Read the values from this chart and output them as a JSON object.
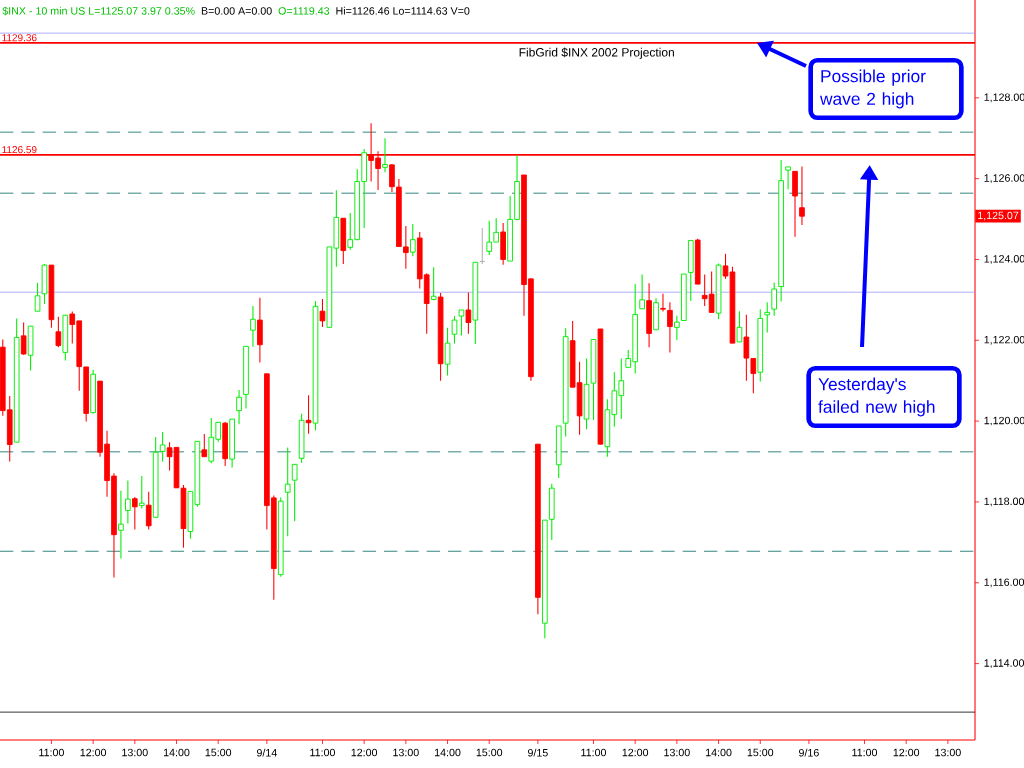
{
  "chart_data": {
    "type": "candlestick",
    "title": "FibGrid $INX 2002 Projection",
    "annotations": [
      "$INX - 10 min  US  L=1125.07  3.97  0.35%",
      "B=0.00  A=0.00",
      "O=1119.43",
      "Hi=1126.46  Lo=1114.63  V=0",
      {
        "text": "Possible prior wave 2 high",
        "y": 1129.36
      },
      "Yesterday's failed new high",
      "1,125.07"
    ],
    "categories": [
      null,
      null,
      null,
      null,
      null,
      null,
      null,
      "11:00",
      null,
      null,
      null,
      null,
      null,
      "12:00",
      null,
      null,
      null,
      null,
      null,
      "13:00",
      null,
      null,
      null,
      null,
      null,
      "14:00",
      null,
      null,
      null,
      null,
      null,
      "15:00",
      null,
      null,
      null,
      null,
      null,
      null,
      "9/14",
      null,
      null,
      null,
      null,
      null,
      null,
      null,
      "11:00",
      null,
      null,
      null,
      null,
      null,
      "12:00",
      null,
      null,
      null,
      null,
      null,
      "13:00",
      null,
      null,
      null,
      null,
      null,
      "14:00",
      null,
      null,
      null,
      null,
      null,
      "15:00",
      null,
      null,
      null,
      null,
      null,
      null,
      "9/15",
      null,
      null,
      null,
      null,
      null,
      null,
      null,
      "11:00",
      null,
      null,
      null,
      null,
      null,
      "12:00",
      null,
      null,
      null,
      null,
      null,
      "13:00",
      null,
      null,
      null,
      null,
      null,
      "14:00",
      null,
      null,
      null,
      null,
      null,
      "15:00",
      null,
      null,
      null,
      null,
      null,
      null,
      "9/16",
      null,
      null,
      null,
      null,
      null,
      null,
      null,
      "11:00",
      null,
      null,
      null,
      null,
      null,
      "12:00",
      null,
      null,
      null,
      null,
      null,
      "13:00",
      null,
      null,
      null
    ],
    "ohlc": [
      [
        1121.83,
        1122.02,
        1120.13,
        1120.26
      ],
      [
        1120.28,
        1120.62,
        1119.0,
        1119.42
      ],
      [
        1119.48,
        1122.54,
        1119.48,
        1122.07
      ],
      [
        1122.11,
        1122.44,
        1121.64,
        1121.66
      ],
      [
        1121.63,
        1122.35,
        1121.25,
        1122.35
      ],
      [
        1122.72,
        1123.42,
        1122.72,
        1123.1
      ],
      [
        1123.15,
        1123.89,
        1122.9,
        1123.86
      ],
      [
        1123.86,
        1123.86,
        1122.31,
        1122.51
      ],
      [
        1122.21,
        1122.58,
        1121.83,
        1121.87
      ],
      [
        1121.7,
        1122.62,
        1121.5,
        1122.62
      ],
      [
        1122.65,
        1122.71,
        1121.92,
        1122.39
      ],
      [
        1122.48,
        1122.48,
        1120.75,
        1121.35
      ],
      [
        1121.34,
        1121.34,
        1119.99,
        1120.19
      ],
      [
        1120.21,
        1121.27,
        1120.19,
        1121.16
      ],
      [
        1120.99,
        1120.99,
        1119.12,
        1119.23
      ],
      [
        1119.43,
        1119.76,
        1118.13,
        1118.53
      ],
      [
        1118.64,
        1118.71,
        1116.13,
        1117.19
      ],
      [
        1117.3,
        1118.28,
        1116.6,
        1117.45
      ],
      [
        1117.79,
        1118.53,
        1117.47,
        1118.07
      ],
      [
        1118.08,
        1118.12,
        1117.32,
        1117.88
      ],
      [
        1117.91,
        1118.64,
        1117.84,
        1117.97
      ],
      [
        1117.92,
        1118.25,
        1117.32,
        1117.41
      ],
      [
        1117.62,
        1119.61,
        1117.62,
        1119.23
      ],
      [
        1119.25,
        1119.73,
        1119.0,
        1119.41
      ],
      [
        1119.34,
        1119.48,
        1118.78,
        1119.12
      ],
      [
        1119.35,
        1119.35,
        1118.35,
        1118.35
      ],
      [
        1118.34,
        1118.42,
        1116.87,
        1117.34
      ],
      [
        1117.27,
        1118.26,
        1117.09,
        1118.26
      ],
      [
        1117.94,
        1119.5,
        1117.88,
        1119.5
      ],
      [
        1119.29,
        1119.68,
        1119.12,
        1119.12
      ],
      [
        1119.01,
        1120.08,
        1118.96,
        1119.6
      ],
      [
        1119.55,
        1119.97,
        1119.49,
        1119.97
      ],
      [
        1119.95,
        1119.98,
        1118.89,
        1119.07
      ],
      [
        1119.06,
        1120.05,
        1118.85,
        1120.05
      ],
      [
        1120.26,
        1120.77,
        1119.92,
        1120.59
      ],
      [
        1120.66,
        1121.85,
        1120.31,
        1121.85
      ],
      [
        1122.25,
        1122.85,
        1121.84,
        1122.52
      ],
      [
        1122.5,
        1123.05,
        1121.45,
        1121.89
      ],
      [
        1121.17,
        1121.17,
        1117.32,
        1117.91
      ],
      [
        1118.1,
        1118.16,
        1115.58,
        1116.35
      ],
      [
        1116.2,
        1118.11,
        1116.15,
        1118.02
      ],
      [
        1118.24,
        1119.35,
        1117.15,
        1118.44
      ],
      [
        1118.54,
        1118.93,
        1117.52,
        1118.93
      ],
      [
        1119.08,
        1120.18,
        1118.97,
        1120.02
      ],
      [
        1120.02,
        1120.64,
        1119.69,
        1119.96
      ],
      [
        1119.95,
        1122.97,
        1119.77,
        1122.84
      ],
      [
        1122.72,
        1123.02,
        1122.33,
        1122.48
      ],
      [
        1122.32,
        1124.31,
        1122.32,
        1124.31
      ],
      [
        1124.28,
        1125.71,
        1123.82,
        1125.04
      ],
      [
        1125.02,
        1125.02,
        1123.89,
        1124.22
      ],
      [
        1124.3,
        1125.15,
        1124.24,
        1124.49
      ],
      [
        1124.49,
        1126.23,
        1124.49,
        1125.93
      ],
      [
        1125.93,
        1126.73,
        1124.78,
        1126.64
      ],
      [
        1126.58,
        1127.37,
        1125.93,
        1126.45
      ],
      [
        1126.51,
        1126.68,
        1125.72,
        1126.25
      ],
      [
        1126.28,
        1127.0,
        1126.16,
        1126.35
      ],
      [
        1126.34,
        1126.36,
        1125.67,
        1125.8
      ],
      [
        1125.79,
        1125.99,
        1124.32,
        1124.32
      ],
      [
        1124.31,
        1124.83,
        1123.77,
        1124.17
      ],
      [
        1124.18,
        1124.88,
        1124.08,
        1124.49
      ],
      [
        1124.53,
        1124.68,
        1123.28,
        1123.52
      ],
      [
        1123.62,
        1123.66,
        1122.16,
        1122.91
      ],
      [
        1123.01,
        1123.81,
        1122.99,
        1123.09
      ],
      [
        1123.07,
        1123.17,
        1121.0,
        1121.42
      ],
      [
        1121.41,
        1122.31,
        1121.13,
        1121.93
      ],
      [
        1122.15,
        1122.6,
        1121.92,
        1122.5
      ],
      [
        1122.6,
        1122.75,
        1122.12,
        1122.75
      ],
      [
        1122.75,
        1123.18,
        1122.16,
        1122.44
      ],
      [
        1122.5,
        1123.93,
        1121.91,
        1123.93
      ],
      [
        1123.95,
        1124.78,
        1123.89,
        1123.95
      ],
      [
        1124.2,
        1124.96,
        1124.11,
        1124.43
      ],
      [
        1124.43,
        1125.02,
        1124.43,
        1124.67
      ],
      [
        1124.68,
        1124.9,
        1123.87,
        1124.0
      ],
      [
        1123.96,
        1125.57,
        1123.96,
        1124.99
      ],
      [
        1124.99,
        1126.58,
        1124.99,
        1125.93
      ],
      [
        1126.09,
        1126.09,
        1122.61,
        1123.38
      ],
      [
        1123.52,
        1123.52,
        1121.0,
        1121.1
      ],
      [
        1119.43,
        1119.43,
        1115.22,
        1115.64
      ],
      [
        1115.0,
        1117.55,
        1114.63,
        1117.55
      ],
      [
        1117.57,
        1118.45,
        1117.06,
        1118.34
      ],
      [
        1118.92,
        1119.88,
        1118.59,
        1119.88
      ],
      [
        1119.95,
        1122.3,
        1119.62,
        1122.09
      ],
      [
        1121.99,
        1122.48,
        1120.84,
        1120.84
      ],
      [
        1120.95,
        1121.47,
        1119.66,
        1120.13
      ],
      [
        1120.05,
        1121.55,
        1119.8,
        1120.91
      ],
      [
        1120.94,
        1122.02,
        1120.03,
        1122.02
      ],
      [
        1122.28,
        1122.28,
        1119.43,
        1119.43
      ],
      [
        1119.37,
        1120.54,
        1119.12,
        1120.28
      ],
      [
        1120.16,
        1121.21,
        1119.86,
        1120.75
      ],
      [
        1120.63,
        1121.55,
        1120.05,
        1121.0
      ],
      [
        1121.33,
        1121.76,
        1121.33,
        1121.55
      ],
      [
        1121.47,
        1123.39,
        1121.18,
        1122.64
      ],
      [
        1122.78,
        1123.63,
        1122.78,
        1123.0
      ],
      [
        1122.98,
        1123.41,
        1121.83,
        1122.17
      ],
      [
        1122.26,
        1123.04,
        1122.26,
        1122.93
      ],
      [
        1122.79,
        1123.15,
        1122.71,
        1122.77
      ],
      [
        1122.74,
        1122.94,
        1121.7,
        1122.34
      ],
      [
        1122.32,
        1122.61,
        1122.01,
        1122.45
      ],
      [
        1122.49,
        1123.64,
        1122.49,
        1123.64
      ],
      [
        1123.68,
        1124.47,
        1122.97,
        1124.47
      ],
      [
        1124.48,
        1124.51,
        1123.39,
        1123.39
      ],
      [
        1123.11,
        1123.63,
        1122.85,
        1123.03
      ],
      [
        1123.14,
        1123.7,
        1122.69,
        1122.69
      ],
      [
        1122.67,
        1123.9,
        1122.52,
        1123.86
      ],
      [
        1123.84,
        1124.14,
        1123.52,
        1123.59
      ],
      [
        1123.69,
        1123.82,
        1121.93,
        1121.93
      ],
      [
        1121.96,
        1122.72,
        1121.96,
        1122.32
      ],
      [
        1122.08,
        1122.63,
        1121.0,
        1121.56
      ],
      [
        1121.55,
        1121.55,
        1120.69,
        1121.18
      ],
      [
        1121.21,
        1122.77,
        1120.98,
        1122.54
      ],
      [
        1122.63,
        1122.94,
        1122.19,
        1122.69
      ],
      [
        1122.77,
        1123.43,
        1122.61,
        1123.27
      ],
      [
        1123.33,
        1126.46,
        1122.96,
        1125.95
      ],
      [
        1126.21,
        1126.29,
        1125.74,
        1126.29
      ],
      [
        1126.18,
        1126.18,
        1124.56,
        1125.57
      ],
      [
        1125.28,
        1126.3,
        1124.85,
        1125.07
      ],
      null,
      null,
      null,
      null,
      null,
      null,
      null,
      null,
      null,
      null,
      null,
      null,
      null,
      null,
      null,
      null,
      null,
      null,
      null,
      null,
      null,
      null,
      null,
      null
    ],
    "ylim": [
      1112.11,
      1130.42
    ],
    "yticks": [
      {
        "value": 1114,
        "label": "1,114.00"
      },
      {
        "value": 1116,
        "label": "1,116.00"
      },
      {
        "value": 1118,
        "label": "1,118.00"
      },
      {
        "value": 1120,
        "label": "1,120.00"
      },
      {
        "value": 1122,
        "label": "1,122.00"
      },
      {
        "value": 1124,
        "label": "1,124.00"
      },
      {
        "value": 1126,
        "label": "1,126.00"
      },
      {
        "value": 1128,
        "label": "1,128.00"
      }
    ],
    "ref_lines": [
      {
        "axis": "y",
        "value": 1129.6,
        "color": "#9999ff"
      },
      {
        "axis": "y",
        "value": 1129.36,
        "label": "1129.36",
        "color": "#ff0000"
      },
      {
        "axis": "y",
        "value": 1127.15,
        "color": "#006a60",
        "line_style": "dashed"
      },
      {
        "axis": "y",
        "value": 1126.59,
        "label": "1126.59",
        "color": "#ff0000"
      },
      {
        "axis": "y",
        "value": 1125.64,
        "color": "#006a60",
        "line_style": "dashed"
      },
      {
        "axis": "y",
        "value": 1123.19,
        "color": "#9999ff"
      },
      {
        "axis": "y",
        "value": 1119.24,
        "color": "#006a60",
        "line_style": "dashed"
      },
      {
        "axis": "y",
        "value": 1116.78,
        "color": "#006a60",
        "line_style": "dashed"
      },
      {
        "axis": "y",
        "value": 1112.8,
        "color": "#000000"
      }
    ]
  }
}
